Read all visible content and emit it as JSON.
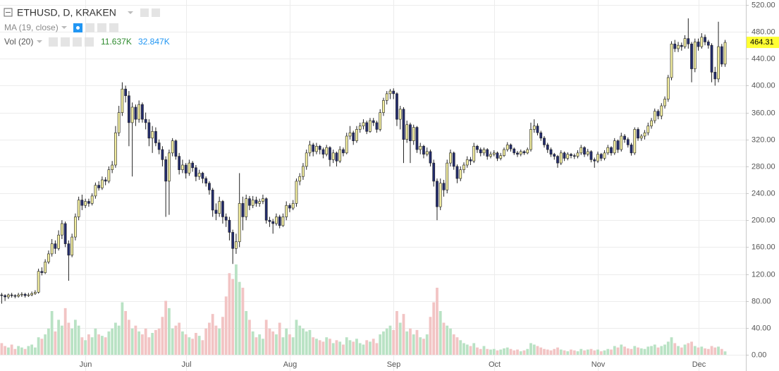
{
  "chart_data": {
    "type": "candlestick",
    "title": "ETHUSD, D, KRAKEN",
    "indicators": [
      {
        "label": "MA (19, close)"
      },
      {
        "label": "Vol (20)",
        "values": [
          "11.637K",
          "32.847K"
        ],
        "colors": [
          "#2e8b2e",
          "#2196f3"
        ]
      }
    ],
    "up_color": "#f3eea0",
    "down_color": "#232c6e",
    "volume_up_color": "#b9e2c4",
    "volume_down_color": "#f2c4c4",
    "last_price": 464.31,
    "last_price_color": "#ffff33",
    "grid": true,
    "xlim": [
      -0.5,
      222.2
    ],
    "xticks": [
      {
        "value": 25,
        "label": "Jun"
      },
      {
        "value": 55,
        "label": "Jul"
      },
      {
        "value": 86,
        "label": "Aug"
      },
      {
        "value": 117,
        "label": "Sep"
      },
      {
        "value": 147,
        "label": "Oct"
      },
      {
        "value": 178,
        "label": "Nov"
      },
      {
        "value": 208,
        "label": "Dec"
      }
    ],
    "ylim": [
      -24.1,
      527.3
    ],
    "yticks": [
      {
        "value": 0,
        "label": "0.00"
      },
      {
        "value": 40,
        "label": "40.00"
      },
      {
        "value": 80,
        "label": "80.00"
      },
      {
        "value": 120,
        "label": "120.00"
      },
      {
        "value": 160,
        "label": "160.00"
      },
      {
        "value": 200,
        "label": "200.00"
      },
      {
        "value": 240,
        "label": "240.00"
      },
      {
        "value": 280,
        "label": "280.00"
      },
      {
        "value": 320,
        "label": "320.00"
      },
      {
        "value": 360,
        "label": "360.00"
      },
      {
        "value": 400,
        "label": "400.00"
      },
      {
        "value": 440,
        "label": "440.00"
      },
      {
        "value": 480,
        "label": "480.00"
      },
      {
        "value": 520,
        "label": "520.00"
      }
    ],
    "volume_ylim": [
      0,
      1200
    ],
    "candles": [
      [
        89,
        92,
        76,
        88
      ],
      [
        88,
        90,
        80,
        86
      ],
      [
        86,
        91,
        83,
        89
      ],
      [
        89,
        92,
        85,
        88
      ],
      [
        88,
        90,
        84,
        87
      ],
      [
        87,
        92,
        85,
        89
      ],
      [
        89,
        93,
        86,
        90
      ],
      [
        90,
        92,
        85,
        88
      ],
      [
        88,
        92,
        86,
        89
      ],
      [
        89,
        94,
        87,
        91
      ],
      [
        91,
        96,
        89,
        93
      ],
      [
        93,
        128,
        91,
        124
      ],
      [
        124,
        130,
        118,
        122
      ],
      [
        122,
        142,
        120,
        138
      ],
      [
        138,
        155,
        135,
        150
      ],
      [
        150,
        172,
        146,
        165
      ],
      [
        165,
        170,
        150,
        158
      ],
      [
        158,
        185,
        155,
        178
      ],
      [
        178,
        200,
        172,
        195
      ],
      [
        195,
        198,
        160,
        165
      ],
      [
        165,
        170,
        110,
        148
      ],
      [
        148,
        180,
        145,
        175
      ],
      [
        175,
        210,
        170,
        205
      ],
      [
        205,
        235,
        200,
        230
      ],
      [
        230,
        238,
        215,
        222
      ],
      [
        222,
        232,
        218,
        228
      ],
      [
        228,
        232,
        220,
        225
      ],
      [
        225,
        240,
        222,
        236
      ],
      [
        236,
        256,
        232,
        252
      ],
      [
        252,
        258,
        244,
        248
      ],
      [
        248,
        265,
        245,
        260
      ],
      [
        260,
        264,
        252,
        258
      ],
      [
        258,
        280,
        255,
        275
      ],
      [
        275,
        288,
        270,
        282
      ],
      [
        282,
        340,
        278,
        330
      ],
      [
        330,
        370,
        325,
        360
      ],
      [
        360,
        405,
        355,
        395
      ],
      [
        395,
        400,
        375,
        385
      ],
      [
        385,
        392,
        310,
        345
      ],
      [
        345,
        375,
        265,
        368
      ],
      [
        368,
        372,
        340,
        350
      ],
      [
        350,
        378,
        345,
        372
      ],
      [
        372,
        375,
        345,
        350
      ],
      [
        350,
        360,
        335,
        345
      ],
      [
        345,
        350,
        310,
        322
      ],
      [
        322,
        340,
        300,
        332
      ],
      [
        332,
        338,
        310,
        315
      ],
      [
        315,
        320,
        298,
        305
      ],
      [
        305,
        310,
        280,
        290
      ],
      [
        290,
        295,
        205,
        258
      ],
      [
        258,
        305,
        208,
        300
      ],
      [
        300,
        322,
        295,
        318
      ],
      [
        318,
        320,
        290,
        295
      ],
      [
        295,
        300,
        268,
        275
      ],
      [
        275,
        290,
        270,
        282
      ],
      [
        282,
        285,
        262,
        270
      ],
      [
        270,
        290,
        266,
        285
      ],
      [
        285,
        288,
        272,
        278
      ],
      [
        278,
        282,
        258,
        265
      ],
      [
        265,
        275,
        260,
        270
      ],
      [
        270,
        272,
        255,
        262
      ],
      [
        262,
        265,
        250,
        255
      ],
      [
        255,
        258,
        238,
        245
      ],
      [
        245,
        248,
        205,
        215
      ],
      [
        215,
        225,
        200,
        210
      ],
      [
        210,
        235,
        205,
        228
      ],
      [
        228,
        230,
        195,
        205
      ],
      [
        205,
        210,
        190,
        200
      ],
      [
        200,
        205,
        170,
        182
      ],
      [
        182,
        186,
        135,
        158
      ],
      [
        158,
        180,
        150,
        168
      ],
      [
        168,
        270,
        160,
        225
      ],
      [
        225,
        235,
        185,
        205
      ],
      [
        205,
        238,
        200,
        232
      ],
      [
        232,
        236,
        215,
        222
      ],
      [
        222,
        236,
        218,
        230
      ],
      [
        230,
        235,
        220,
        225
      ],
      [
        225,
        232,
        220,
        228
      ],
      [
        228,
        238,
        224,
        232
      ],
      [
        232,
        234,
        195,
        200
      ],
      [
        200,
        205,
        190,
        198
      ],
      [
        198,
        202,
        180,
        195
      ],
      [
        195,
        210,
        192,
        205
      ],
      [
        205,
        208,
        188,
        192
      ],
      [
        192,
        210,
        190,
        205
      ],
      [
        205,
        228,
        200,
        222
      ],
      [
        222,
        225,
        212,
        218
      ],
      [
        218,
        230,
        215,
        225
      ],
      [
        225,
        262,
        220,
        258
      ],
      [
        258,
        270,
        252,
        265
      ],
      [
        265,
        285,
        260,
        280
      ],
      [
        280,
        305,
        275,
        300
      ],
      [
        300,
        318,
        295,
        312
      ],
      [
        312,
        315,
        295,
        302
      ],
      [
        302,
        315,
        298,
        310
      ],
      [
        310,
        312,
        298,
        305
      ],
      [
        305,
        308,
        292,
        298
      ],
      [
        298,
        312,
        295,
        308
      ],
      [
        308,
        310,
        280,
        290
      ],
      [
        290,
        305,
        285,
        300
      ],
      [
        300,
        302,
        280,
        288
      ],
      [
        288,
        310,
        285,
        305
      ],
      [
        305,
        308,
        295,
        300
      ],
      [
        300,
        330,
        298,
        325
      ],
      [
        325,
        340,
        320,
        330
      ],
      [
        330,
        333,
        312,
        318
      ],
      [
        318,
        340,
        315,
        335
      ],
      [
        335,
        345,
        330,
        340
      ],
      [
        340,
        350,
        335,
        345
      ],
      [
        345,
        348,
        328,
        332
      ],
      [
        332,
        352,
        330,
        348
      ],
      [
        348,
        352,
        340,
        345
      ],
      [
        345,
        348,
        330,
        335
      ],
      [
        335,
        365,
        332,
        360
      ],
      [
        360,
        382,
        355,
        378
      ],
      [
        378,
        392,
        372,
        388
      ],
      [
        388,
        395,
        380,
        392
      ],
      [
        392,
        396,
        380,
        388
      ],
      [
        388,
        390,
        340,
        350
      ],
      [
        350,
        370,
        335,
        365
      ],
      [
        365,
        368,
        285,
        320
      ],
      [
        320,
        348,
        315,
        342
      ],
      [
        342,
        345,
        285,
        318
      ],
      [
        318,
        342,
        312,
        338
      ],
      [
        338,
        340,
        300,
        305
      ],
      [
        305,
        315,
        298,
        310
      ],
      [
        310,
        312,
        292,
        298
      ],
      [
        298,
        308,
        295,
        302
      ],
      [
        302,
        305,
        280,
        285
      ],
      [
        285,
        290,
        250,
        258
      ],
      [
        258,
        262,
        200,
        220
      ],
      [
        220,
        262,
        215,
        255
      ],
      [
        255,
        260,
        235,
        245
      ],
      [
        245,
        290,
        240,
        285
      ],
      [
        285,
        305,
        280,
        300
      ],
      [
        300,
        302,
        275,
        280
      ],
      [
        280,
        283,
        255,
        262
      ],
      [
        262,
        280,
        258,
        275
      ],
      [
        275,
        286,
        270,
        282
      ],
      [
        282,
        295,
        278,
        290
      ],
      [
        290,
        294,
        282,
        288
      ],
      [
        288,
        315,
        285,
        310
      ],
      [
        310,
        312,
        300,
        305
      ],
      [
        305,
        308,
        295,
        300
      ],
      [
        300,
        308,
        296,
        305
      ],
      [
        305,
        307,
        290,
        295
      ],
      [
        295,
        302,
        292,
        298
      ],
      [
        298,
        304,
        295,
        300
      ],
      [
        300,
        302,
        288,
        292
      ],
      [
        292,
        300,
        289,
        296
      ],
      [
        296,
        308,
        294,
        305
      ],
      [
        305,
        316,
        302,
        312
      ],
      [
        312,
        314,
        302,
        306
      ],
      [
        306,
        308,
        297,
        300
      ],
      [
        300,
        303,
        294,
        298
      ],
      [
        298,
        305,
        295,
        302
      ],
      [
        302,
        304,
        297,
        300
      ],
      [
        300,
        308,
        298,
        305
      ],
      [
        305,
        345,
        302,
        335
      ],
      [
        335,
        350,
        330,
        340
      ],
      [
        340,
        344,
        326,
        330
      ],
      [
        330,
        333,
        318,
        322
      ],
      [
        322,
        325,
        308,
        312
      ],
      [
        312,
        315,
        300,
        305
      ],
      [
        305,
        308,
        294,
        298
      ],
      [
        298,
        300,
        290,
        295
      ],
      [
        295,
        297,
        278,
        285
      ],
      [
        285,
        304,
        282,
        300
      ],
      [
        300,
        302,
        288,
        292
      ],
      [
        292,
        301,
        289,
        298
      ],
      [
        298,
        300,
        292,
        296
      ],
      [
        296,
        299,
        291,
        295
      ],
      [
        295,
        304,
        292,
        300
      ],
      [
        300,
        312,
        297,
        308
      ],
      [
        308,
        310,
        294,
        298
      ],
      [
        298,
        306,
        295,
        302
      ],
      [
        302,
        304,
        286,
        290
      ],
      [
        290,
        293,
        278,
        288
      ],
      [
        288,
        302,
        285,
        298
      ],
      [
        298,
        300,
        288,
        292
      ],
      [
        292,
        304,
        289,
        300
      ],
      [
        300,
        312,
        297,
        308
      ],
      [
        308,
        310,
        296,
        300
      ],
      [
        300,
        322,
        297,
        318
      ],
      [
        318,
        320,
        300,
        305
      ],
      [
        305,
        330,
        302,
        325
      ],
      [
        325,
        328,
        315,
        320
      ],
      [
        320,
        323,
        308,
        312
      ],
      [
        312,
        315,
        296,
        300
      ],
      [
        300,
        338,
        297,
        335
      ],
      [
        335,
        338,
        318,
        322
      ],
      [
        322,
        328,
        318,
        325
      ],
      [
        325,
        334,
        320,
        330
      ],
      [
        330,
        345,
        326,
        340
      ],
      [
        340,
        352,
        336,
        348
      ],
      [
        348,
        366,
        344,
        362
      ],
      [
        362,
        365,
        350,
        355
      ],
      [
        355,
        374,
        350,
        370
      ],
      [
        370,
        384,
        366,
        380
      ],
      [
        380,
        416,
        376,
        412
      ],
      [
        412,
        466,
        408,
        462
      ],
      [
        462,
        468,
        450,
        455
      ],
      [
        455,
        465,
        450,
        460
      ],
      [
        460,
        464,
        452,
        458
      ],
      [
        458,
        475,
        455,
        470
      ],
      [
        470,
        500,
        455,
        462
      ],
      [
        462,
        465,
        405,
        425
      ],
      [
        425,
        470,
        420,
        465
      ],
      [
        465,
        470,
        452,
        458
      ],
      [
        458,
        478,
        455,
        472
      ],
      [
        472,
        476,
        460,
        465
      ],
      [
        465,
        468,
        455,
        460
      ],
      [
        460,
        463,
        405,
        420
      ],
      [
        420,
        428,
        400,
        410
      ],
      [
        410,
        495,
        405,
        458
      ],
      [
        458,
        462,
        428,
        432
      ],
      [
        432,
        468,
        428,
        464.31
      ]
    ],
    "volumes": [
      40,
      30,
      25,
      35,
      20,
      30,
      25,
      20,
      30,
      35,
      25,
      60,
      55,
      70,
      90,
      150,
      80,
      120,
      100,
      160,
      110,
      90,
      120,
      100,
      60,
      50,
      70,
      60,
      90,
      70,
      65,
      60,
      80,
      90,
      110,
      100,
      180,
      150,
      120,
      90,
      100,
      80,
      70,
      90,
      60,
      75,
      85,
      90,
      130,
      185,
      160,
      90,
      100,
      110,
      80,
      70,
      60,
      55,
      75,
      65,
      50,
      90,
      110,
      140,
      100,
      90,
      130,
      200,
      280,
      260,
      310,
      250,
      230,
      150,
      120,
      80,
      60,
      70,
      55,
      120,
      90,
      80,
      70,
      110,
      60,
      90,
      70,
      60,
      120,
      100,
      90,
      80,
      85,
      60,
      55,
      50,
      45,
      60,
      55,
      40,
      50,
      45,
      35,
      60,
      50,
      45,
      55,
      40,
      35,
      50,
      45,
      55,
      40,
      70,
      80,
      90,
      100,
      85,
      150,
      110,
      140,
      80,
      90,
      70,
      85,
      60,
      55,
      70,
      130,
      180,
      230,
      150,
      110,
      100,
      90,
      70,
      60,
      50,
      40,
      35,
      30,
      40,
      25,
      20,
      30,
      20,
      18,
      20,
      15,
      18,
      22,
      25,
      20,
      15,
      18,
      12,
      15,
      20,
      40,
      35,
      30,
      25,
      20,
      18,
      15,
      20,
      25,
      18,
      15,
      12,
      18,
      15,
      12,
      20,
      15,
      18,
      20,
      15,
      18,
      12,
      15,
      20,
      18,
      30,
      25,
      35,
      28,
      22,
      20,
      30,
      25,
      22,
      20,
      28,
      30,
      35,
      25,
      30,
      35,
      45,
      60,
      40,
      30,
      25,
      35,
      40,
      45,
      30,
      25,
      28,
      22,
      20,
      30,
      25,
      28,
      20,
      11.637
    ]
  }
}
